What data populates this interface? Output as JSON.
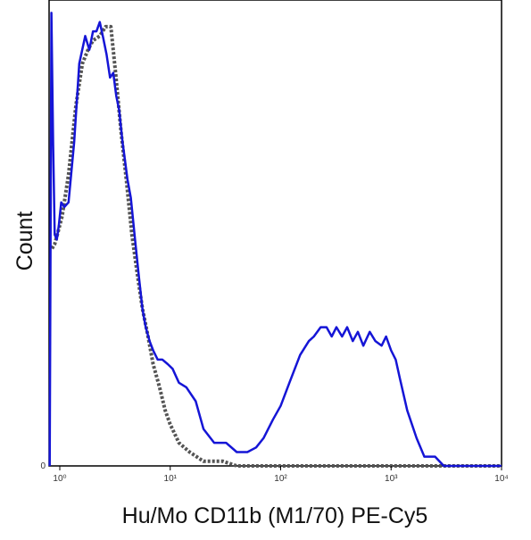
{
  "chart_data": {
    "type": "line",
    "xlabel": "Hu/Mo CD11b (M1/70) PE-Cy5",
    "ylabel": "Count",
    "x_scale": "log",
    "xlim": [
      0.8,
      10000
    ],
    "ylim": [
      0,
      1.0
    ],
    "grid": false,
    "legend": "none",
    "x_ticks": [
      {
        "value": 1,
        "label": "10⁰"
      },
      {
        "value": 10,
        "label": "10¹"
      },
      {
        "value": 100,
        "label": "10²"
      },
      {
        "value": 1000,
        "label": "10³"
      },
      {
        "value": 10000,
        "label": "10⁴"
      }
    ],
    "y_ticks": [
      {
        "value": 0,
        "label": "0"
      }
    ],
    "series": [
      {
        "style": "solid",
        "color": "#1515d6",
        "x": [
          0.81,
          0.84,
          0.87,
          0.9,
          0.94,
          0.98,
          1.03,
          1.1,
          1.2,
          1.35,
          1.5,
          1.7,
          1.85,
          2.0,
          2.15,
          2.3,
          2.45,
          2.65,
          2.85,
          3.05,
          3.25,
          3.45,
          3.7,
          3.9,
          4.1,
          4.4,
          4.8,
          5.2,
          5.6,
          6.0,
          6.5,
          7.0,
          7.7,
          8.5,
          9.5,
          10.5,
          12,
          14,
          17,
          20,
          25,
          32,
          40,
          50,
          60,
          70,
          85,
          100,
          120,
          150,
          180,
          200,
          230,
          260,
          290,
          320,
          360,
          400,
          450,
          500,
          560,
          640,
          720,
          820,
          900,
          1000,
          1100,
          1200,
          1400,
          1700,
          2000,
          2500,
          3000,
          4000,
          6000,
          10000
        ],
        "y": [
          0.0,
          0.98,
          0.7,
          0.5,
          0.49,
          0.52,
          0.57,
          0.56,
          0.57,
          0.7,
          0.87,
          0.93,
          0.9,
          0.94,
          0.94,
          0.96,
          0.93,
          0.89,
          0.84,
          0.85,
          0.8,
          0.77,
          0.7,
          0.66,
          0.62,
          0.58,
          0.49,
          0.41,
          0.34,
          0.3,
          0.27,
          0.25,
          0.23,
          0.23,
          0.22,
          0.21,
          0.18,
          0.17,
          0.14,
          0.08,
          0.05,
          0.05,
          0.03,
          0.03,
          0.04,
          0.06,
          0.1,
          0.13,
          0.18,
          0.24,
          0.27,
          0.28,
          0.3,
          0.3,
          0.28,
          0.3,
          0.28,
          0.3,
          0.27,
          0.29,
          0.26,
          0.29,
          0.27,
          0.26,
          0.28,
          0.25,
          0.23,
          0.19,
          0.12,
          0.06,
          0.02,
          0.02,
          0.0,
          0.0,
          0.0,
          0.0
        ]
      },
      {
        "style": "dotted",
        "color": "#555555",
        "x": [
          0.85,
          0.9,
          0.95,
          1.05,
          1.2,
          1.4,
          1.6,
          1.8,
          2.0,
          2.3,
          2.6,
          2.9,
          3.2,
          3.6,
          4.0,
          4.5,
          5.0,
          5.6,
          6.3,
          7.0,
          8.0,
          9.0,
          10,
          12,
          15,
          20,
          25,
          30,
          40,
          60,
          100,
          200,
          500,
          1000,
          3000,
          10000
        ],
        "y": [
          0.47,
          0.48,
          0.5,
          0.54,
          0.63,
          0.78,
          0.87,
          0.9,
          0.92,
          0.93,
          0.95,
          0.95,
          0.85,
          0.72,
          0.62,
          0.5,
          0.42,
          0.34,
          0.28,
          0.22,
          0.17,
          0.12,
          0.09,
          0.05,
          0.03,
          0.01,
          0.01,
          0.01,
          0.0,
          0.0,
          0.0,
          0.0,
          0.0,
          0.0,
          0.0,
          0.0
        ]
      }
    ]
  }
}
